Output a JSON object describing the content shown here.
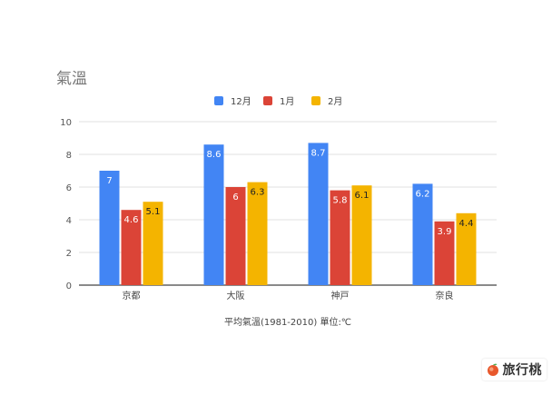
{
  "chart_data": {
    "type": "bar",
    "title": "氣溫",
    "categories": [
      "京都",
      "大阪",
      "神戸",
      "奈良"
    ],
    "series": [
      {
        "name": "12月",
        "values": [
          7,
          8.6,
          8.7,
          6.2
        ],
        "labels": [
          "7",
          "8.6",
          "8.7",
          "6.2"
        ],
        "color": "#4285f4"
      },
      {
        "name": "1月",
        "values": [
          4.6,
          6,
          5.8,
          3.9
        ],
        "labels": [
          "4.6",
          "6",
          "5.8",
          "3.9"
        ],
        "color": "#db4437"
      },
      {
        "name": "2月",
        "values": [
          5.1,
          6.3,
          6.1,
          4.4
        ],
        "labels": [
          "5.1",
          "6.3",
          "6.1",
          "4.4"
        ],
        "color": "#f4b400"
      }
    ],
    "xlabel": "平均氣溫(1981-2010) 單位:℃",
    "ylabel": "",
    "ylim": [
      0,
      10
    ],
    "yticks": [
      "0",
      "2",
      "4",
      "6",
      "8",
      "10"
    ],
    "grid": true,
    "legend_position": "top"
  },
  "watermark": {
    "text": "旅行桃",
    "icon": "peach-icon"
  }
}
